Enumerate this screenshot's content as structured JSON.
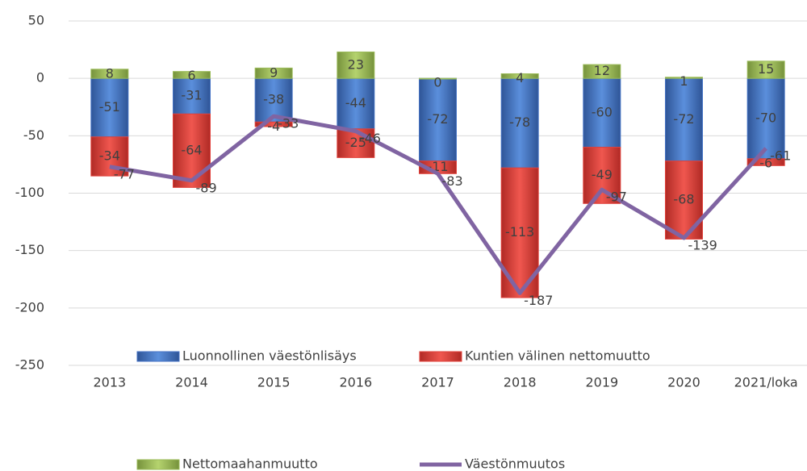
{
  "chart_data": {
    "type": "bar",
    "stacked": true,
    "categories": [
      "2013",
      "2014",
      "2015",
      "2016",
      "2017",
      "2018",
      "2019",
      "2020",
      "2021/loka"
    ],
    "series": [
      {
        "name": "Luonnollinen väestönlisäys",
        "color": "#4472c4",
        "values": [
          -51,
          -31,
          -38,
          -44,
          -72,
          -78,
          -60,
          -72,
          -70
        ]
      },
      {
        "name": "Kuntien välinen nettomuutto",
        "color": "#e0403a",
        "values": [
          -34,
          -64,
          -4,
          -25,
          -11,
          -113,
          -49,
          -68,
          -6
        ]
      },
      {
        "name": "Nettomaahanmuutto",
        "color": "#9bbb59",
        "values": [
          8,
          6,
          9,
          23,
          0,
          4,
          12,
          1,
          15
        ]
      },
      {
        "name": "Väestönmuutos",
        "color": "#8064a2",
        "type": "line",
        "label_color": "#ff0000",
        "values": [
          -77,
          -89,
          -33,
          -46,
          -83,
          -187,
          -97,
          -139,
          -61
        ]
      }
    ],
    "ylim": [
      -250,
      50
    ],
    "yticks": [
      -250,
      -200,
      -150,
      -100,
      -50,
      0,
      50
    ],
    "grid": true,
    "legend": "bottom"
  }
}
